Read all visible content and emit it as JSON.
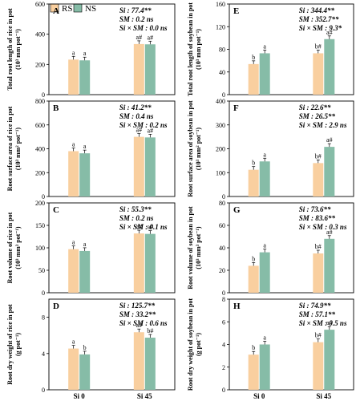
{
  "colors": {
    "RS": "#F9CF9F",
    "NS": "#86BCA7",
    "axis": "#000000"
  },
  "legend": [
    "RS",
    "NS"
  ],
  "chart_data": [
    {
      "panel": "A",
      "type": "bar",
      "categories": [
        "Si 0",
        "Si 45"
      ],
      "series": [
        {
          "name": "RS",
          "values": [
            232,
            335
          ],
          "labels": [
            "a",
            "a#"
          ]
        },
        {
          "name": "NS",
          "values": [
            227,
            333
          ],
          "labels": [
            "a",
            "a#"
          ]
        }
      ],
      "ylabel": [
        "Total root length of rice in pot",
        "(10³ mm pot⁻¹)"
      ],
      "ylim": [
        0,
        600
      ],
      "yticks": [
        "0",
        "200",
        "400",
        "600"
      ],
      "stats": [
        "Si : 77.4**",
        "SM : 0.2 ns",
        "Si × SM : 0.0 ns"
      ]
    },
    {
      "panel": "B",
      "type": "bar",
      "categories": [
        "Si 0",
        "Si 45"
      ],
      "series": [
        {
          "name": "RS",
          "values": [
            380,
            500
          ],
          "labels": [
            "a",
            "a#"
          ]
        },
        {
          "name": "NS",
          "values": [
            362,
            495
          ],
          "labels": [
            "a",
            "a#"
          ]
        }
      ],
      "ylabel": [
        "Root surface area of rice in pot",
        "(10³ mm² pot⁻¹)"
      ],
      "ylim": [
        0,
        800
      ],
      "yticks": [
        "0",
        "200",
        "400",
        "600",
        "800"
      ],
      "stats": [
        "Si : 41.2**",
        "SM : 0.4 ns",
        "Si × SM : 0.2 ns"
      ]
    },
    {
      "panel": "C",
      "type": "bar",
      "categories": [
        "Si 0",
        "Si 45"
      ],
      "series": [
        {
          "name": "RS",
          "values": [
            97,
            132
          ],
          "labels": [
            "a",
            "a#"
          ]
        },
        {
          "name": "NS",
          "values": [
            93,
            131
          ],
          "labels": [
            "a",
            "a#"
          ]
        }
      ],
      "ylabel": [
        "Root volume of rice in pot",
        "(10³ mm³ pot⁻¹)"
      ],
      "ylim": [
        0,
        200
      ],
      "yticks": [
        "0",
        "50",
        "100",
        "150",
        "200"
      ],
      "stats": [
        "Si : 55.3**",
        "SM : 0.2 ns",
        "Si × SM : 0.1 ns"
      ]
    },
    {
      "panel": "D",
      "type": "bar",
      "categories": [
        "Si 0",
        "Si 45"
      ],
      "series": [
        {
          "name": "RS",
          "values": [
            4.55,
            6.35
          ],
          "labels": [
            "a",
            "a#"
          ]
        },
        {
          "name": "NS",
          "values": [
            3.9,
            5.75
          ],
          "labels": [
            "b",
            "b#"
          ]
        }
      ],
      "ylabel": [
        "Root dry weight of rice in pot",
        "(g pot⁻¹)"
      ],
      "ylim": [
        0,
        10
      ],
      "yticks": [
        "0",
        "4",
        "8"
      ],
      "stats": [
        "Si : 125.7**",
        "SM : 33.2**",
        "Si × SM : 0.6 ns"
      ]
    },
    {
      "panel": "E",
      "type": "bar",
      "categories": [
        "Si 0",
        "Si 45"
      ],
      "series": [
        {
          "name": "RS",
          "values": [
            54,
            73
          ],
          "labels": [
            "b",
            "b#"
          ]
        },
        {
          "name": "NS",
          "values": [
            73,
            98
          ],
          "labels": [
            "a",
            "a#"
          ]
        }
      ],
      "ylabel": [
        "Total root length of soybean in pot",
        "(10³ mm pot⁻¹)"
      ],
      "ylim": [
        0,
        160
      ],
      "yticks": [
        "0",
        "40",
        "80",
        "120",
        "160"
      ],
      "stats": [
        "Si : 344.4**",
        "SM : 352.7**",
        "Si × SM : 9.3*"
      ]
    },
    {
      "panel": "F",
      "type": "bar",
      "categories": [
        "Si 0",
        "Si 45"
      ],
      "series": [
        {
          "name": "RS",
          "values": [
            112,
            140
          ],
          "labels": [
            "b",
            "b#"
          ]
        },
        {
          "name": "NS",
          "values": [
            147,
            208
          ],
          "labels": [
            "a",
            "a#"
          ]
        }
      ],
      "ylabel": [
        "Root surface area of soybean in pot",
        "(10³ mm² pot⁻¹)"
      ],
      "ylim": [
        0,
        400
      ],
      "yticks": [
        "0",
        "100",
        "200",
        "300",
        "400"
      ],
      "stats": [
        "Si : 22.6**",
        "SM : 26.5**",
        "Si × SM : 2.9 ns"
      ]
    },
    {
      "panel": "G",
      "type": "bar",
      "categories": [
        "Si 0",
        "Si 45"
      ],
      "series": [
        {
          "name": "RS",
          "values": [
            24,
            35
          ],
          "labels": [
            "b",
            "b#"
          ]
        },
        {
          "name": "NS",
          "values": [
            36,
            48
          ],
          "labels": [
            "a",
            "a#"
          ]
        }
      ],
      "ylabel": [
        "Root volume of soybean in pot",
        "(10³ mm³ pot⁻¹)"
      ],
      "ylim": [
        0,
        80
      ],
      "yticks": [
        "0",
        "20",
        "40",
        "60",
        "80"
      ],
      "stats": [
        "Si : 73.6**",
        "SM : 83.6**",
        "Si × SM : 0.3 ns"
      ]
    },
    {
      "panel": "H",
      "type": "bar",
      "categories": [
        "Si 0",
        "Si 45"
      ],
      "series": [
        {
          "name": "RS",
          "values": [
            3.1,
            4.2
          ],
          "labels": [
            "b",
            "b#"
          ]
        },
        {
          "name": "NS",
          "values": [
            4.0,
            5.3
          ],
          "labels": [
            "a",
            "a#"
          ]
        }
      ],
      "ylabel": [
        "Root dry weight of soybean in pot",
        "(g pot⁻¹)"
      ],
      "ylim": [
        0,
        8
      ],
      "yticks": [
        "0",
        "2",
        "4",
        "6",
        "8"
      ],
      "stats": [
        "Si : 74.9**",
        "SM : 57.1**",
        "Si × SM : 0.5 ns"
      ]
    }
  ]
}
